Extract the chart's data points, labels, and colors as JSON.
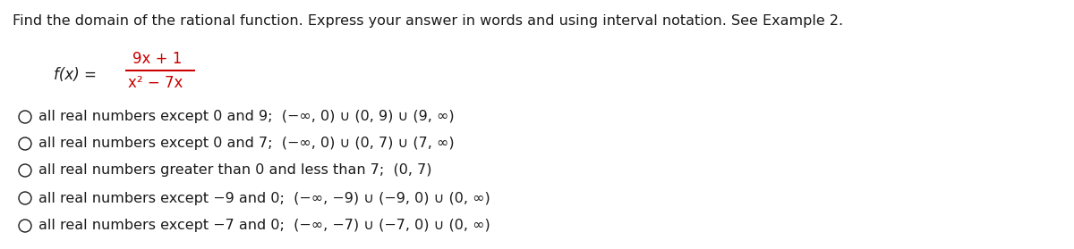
{
  "title": "Find the domain of the rational function. Express your answer in words and using interval notation. See Example 2.",
  "title_fontsize": 11.5,
  "background_color": "#ffffff",
  "numerator_color": "#cc0000",
  "denominator_color": "#cc0000",
  "fraction_bar_color": "#cc0000",
  "text_color": "#1a1a1a",
  "options": [
    "all real numbers except 0 and 9;  (−∞, 0) ∪ (0, 9) ∪ (9, ∞)",
    "all real numbers except 0 and 7;  (−∞, 0) ∪ (0, 7) ∪ (7, ∞)",
    "all real numbers greater than 0 and less than 7;  (0, 7)",
    "all real numbers except −9 and 0;  (−∞, −9) ∪ (−9, 0) ∪ (0, ∞)",
    "all real numbers except −7 and 0;  (−∞, −7) ∪ (−7, 0) ∪ (0, ∞)"
  ],
  "option_fontsize": 11.5,
  "option_font": "DejaVu Sans",
  "fx_label": "f(x) =",
  "numerator_text": "9x + 1",
  "denominator_text": "x² − 7x"
}
